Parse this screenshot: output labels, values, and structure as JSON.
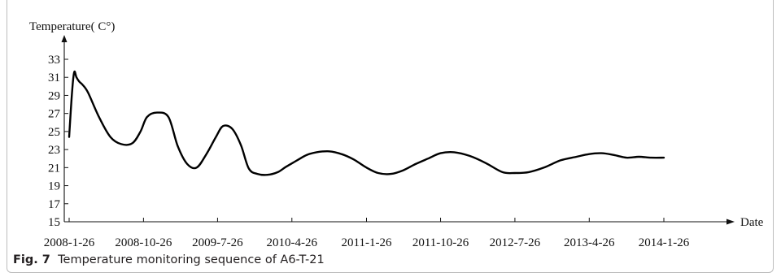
{
  "caption": {
    "label": "Fig. 7",
    "text": "Temperature monitoring sequence of A6-T-21"
  },
  "chart_data": {
    "type": "line",
    "title": "",
    "ylabel": "Temperature( C°)",
    "xlabel": "Date",
    "ylim": [
      15,
      33
    ],
    "yticks": [
      15,
      17,
      19,
      21,
      23,
      25,
      27,
      29,
      31,
      33
    ],
    "xticks": [
      "2008-1-26",
      "2008-10-26",
      "2009-7-26",
      "2010-4-26",
      "2011-1-26",
      "2011-10-26",
      "2012-7-26",
      "2013-4-26",
      "2014-1-26"
    ],
    "grid": false,
    "series": [
      {
        "x": [
          "2008-01-26",
          "2008-02-06",
          "2008-02-14",
          "2008-02-22",
          "2008-03-04",
          "2008-03-15",
          "2008-04-05",
          "2008-05-15",
          "2008-06-26",
          "2008-08-05",
          "2008-09-15",
          "2008-10-15",
          "2008-11-08",
          "2008-12-15",
          "2009-01-26",
          "2009-03-01",
          "2009-04-05",
          "2009-05-10",
          "2009-06-15",
          "2009-07-20",
          "2009-08-15",
          "2009-09-18",
          "2009-10-20",
          "2009-11-18",
          "2009-12-20",
          "2010-01-26",
          "2010-03-05",
          "2010-04-05",
          "2010-05-15",
          "2010-06-20",
          "2010-07-26",
          "2010-09-10",
          "2010-10-26",
          "2010-12-10",
          "2011-01-26",
          "2011-03-10",
          "2011-04-26",
          "2011-06-10",
          "2011-07-26",
          "2011-09-10",
          "2011-10-26",
          "2011-12-15",
          "2012-02-10",
          "2012-04-10",
          "2012-06-10",
          "2012-07-26",
          "2012-09-15",
          "2012-11-10",
          "2013-01-10",
          "2013-03-10",
          "2013-04-26",
          "2013-06-10",
          "2013-07-26",
          "2013-09-10",
          "2013-10-26",
          "2013-12-10",
          "2014-01-26"
        ],
        "y": [
          24.4,
          29.5,
          31.6,
          31.0,
          30.5,
          30.2,
          29.3,
          26.6,
          24.4,
          23.6,
          23.7,
          25.0,
          26.6,
          27.1,
          26.6,
          23.4,
          21.4,
          21.0,
          22.5,
          24.4,
          25.6,
          25.3,
          23.5,
          20.9,
          20.3,
          20.2,
          20.5,
          21.1,
          21.8,
          22.4,
          22.7,
          22.8,
          22.5,
          21.9,
          21.0,
          20.4,
          20.3,
          20.7,
          21.4,
          22.0,
          22.6,
          22.7,
          22.3,
          21.5,
          20.5,
          20.4,
          20.5,
          21.0,
          21.8,
          22.2,
          22.5,
          22.6,
          22.4,
          22.1,
          22.2,
          22.1,
          22.1
        ]
      }
    ]
  }
}
